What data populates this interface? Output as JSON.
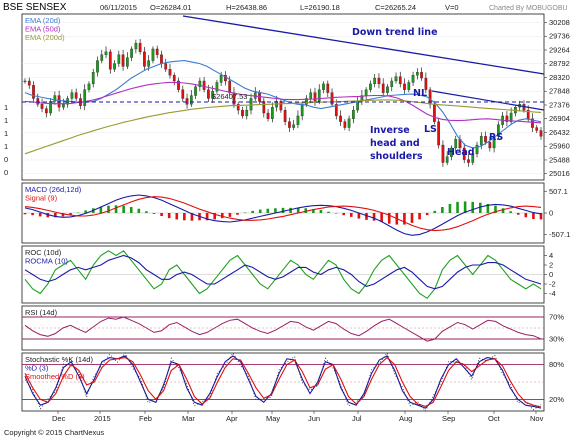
{
  "header": {
    "title": "BSE SENSEX",
    "date": "06/11/2015",
    "open": "O=26284.01",
    "high": "H=26438.86",
    "low": "L=26190.18",
    "close": "C=26265.24",
    "volume": "V=0",
    "credit": "Charted By MOBUGOBU"
  },
  "footer": {
    "copyright": "Copyright © 2015 ChartNexus"
  },
  "colors": {
    "frame": "#1a1a1a",
    "price_bg": "#ffffff",
    "ema20": "#3a7bd5",
    "ema50": "#b030c0",
    "ema200": "#9a9a30",
    "trend": "#1a1aa8",
    "macd": "#1a1aa8",
    "signal": "#e01010",
    "roc": "#20a020",
    "rocma": "#1a1aa8",
    "rsi": "#9a2060",
    "stoch_k": "#1a1aa8",
    "stoch_d": "#e01010",
    "bar_up": "#1a9a1a",
    "bar_down": "#e01010"
  },
  "chart_data": [
    {
      "type": "candlestick",
      "name": "price",
      "legend": [
        "EMA (20d)",
        "EMA (50d)",
        "EMA (200d)"
      ],
      "x_ticks": [
        "Dec",
        "2015",
        "Feb",
        "Mar",
        "Apr",
        "May",
        "Jun",
        "Jul",
        "Aug",
        "Sep",
        "Oct",
        "Nov"
      ],
      "y_ticks": [
        30208,
        29736,
        29264,
        28792,
        28320,
        27848,
        27376,
        26904,
        26432,
        25960,
        25488,
        25016
      ],
      "left_ticks": [
        "1",
        "1",
        "1",
        "1",
        "0",
        "0"
      ],
      "ylim": [
        24800,
        30500
      ],
      "close": [
        28200,
        28050,
        27600,
        27400,
        27250,
        27100,
        27500,
        27700,
        27300,
        27400,
        27600,
        27800,
        27600,
        27350,
        27900,
        28100,
        28500,
        28900,
        29100,
        29200,
        28600,
        28800,
        29100,
        28700,
        29000,
        29300,
        29500,
        29200,
        28700,
        28900,
        29300,
        29100,
        28800,
        28600,
        28400,
        28200,
        27900,
        27600,
        27400,
        27700,
        28000,
        28200,
        27900,
        27600,
        27850,
        28150,
        28400,
        28200,
        27800,
        27400,
        27200,
        27000,
        27200,
        27600,
        27800,
        27500,
        27100,
        26900,
        27300,
        27500,
        27200,
        26800,
        26600,
        26700,
        27000,
        27400,
        27600,
        27800,
        27500,
        27900,
        28100,
        27800,
        27400,
        27000,
        26800,
        26600,
        26900,
        27200,
        27500,
        27700,
        27900,
        28100,
        28300,
        28100,
        27800,
        28000,
        28200,
        28350,
        28100,
        27900,
        28150,
        28400,
        28500,
        28300,
        27900,
        27400,
        26800,
        26000,
        25400,
        25600,
        25900,
        26200,
        25900,
        25500,
        25400,
        25700,
        26000,
        26300,
        26100,
        25900,
        26300,
        26700,
        27000,
        26800,
        27100,
        27300,
        27400,
        27200,
        26900,
        26600,
        26500,
        26300
      ],
      "series": [
        {
          "name": "EMA (20d)",
          "values": [
            27800,
            27700,
            27650,
            27600,
            27550,
            27520,
            27500,
            27480,
            27470,
            27500,
            27600,
            27750,
            27900,
            28100,
            28300,
            28450,
            28600,
            28700,
            28800,
            28850,
            28880,
            28900,
            28850,
            28800,
            28700,
            28550,
            28400,
            28250,
            28100,
            27950,
            27850,
            27800,
            27750,
            27650,
            27550,
            27450,
            27400,
            27380,
            27300,
            27250,
            27300,
            27350,
            27400,
            27450,
            27500,
            27550,
            27600,
            27650,
            27700,
            27720,
            27740,
            27750,
            27720,
            27650,
            27450,
            27150,
            26750,
            26300,
            26000,
            25900,
            25950,
            26100,
            26300,
            26500,
            26700,
            26850,
            26900,
            26850,
            26800
          ]
        },
        {
          "name": "EMA (50d)",
          "values": [
            27500,
            27480,
            27450,
            27430,
            27420,
            27420,
            27430,
            27460,
            27500,
            27550,
            27620,
            27700,
            27780,
            27860,
            27940,
            28000,
            28060,
            28100,
            28130,
            28150,
            28150,
            28130,
            28100,
            28050,
            27990,
            27930,
            27870,
            27810,
            27760,
            27720,
            27690,
            27660,
            27630,
            27600,
            27570,
            27560,
            27560,
            27570,
            27580,
            27600,
            27620,
            27640,
            27650,
            27660,
            27670,
            27690,
            27700,
            27700,
            27680,
            27620,
            27520,
            27380,
            27220,
            27060,
            26950,
            26880,
            26850,
            26840,
            26850,
            26870,
            26890,
            26900,
            26880,
            26850,
            26830,
            26820,
            26800,
            26780,
            26760
          ]
        },
        {
          "name": "EMA (200d)",
          "values": [
            25700,
            25790,
            25880,
            25970,
            26060,
            26150,
            26240,
            26330,
            26410,
            26490,
            26570,
            26640,
            26710,
            26780,
            26840,
            26900,
            26960,
            27010,
            27060,
            27110,
            27150,
            27190,
            27230,
            27260,
            27290,
            27310,
            27330,
            27350,
            27360,
            27370,
            27380,
            27390,
            27400,
            27410,
            27420,
            27430,
            27440,
            27450,
            27460,
            27470,
            27480,
            27490,
            27500,
            27510,
            27520,
            27530,
            27540,
            27550,
            27550,
            27540,
            27520,
            27490,
            27460,
            27430,
            27400,
            27380,
            27360,
            27340,
            27320,
            27300,
            27280,
            27260,
            27240,
            27220,
            27200,
            27180,
            27160,
            27140,
            27120
          ]
        }
      ],
      "annotations": {
        "trend_label": "Down trend line",
        "support_label": "$26407.53",
        "neckline_label": "NL",
        "pattern_label": [
          "Inverse",
          "head and",
          "shoulders"
        ],
        "ls_label": "LS",
        "head_label": "Head",
        "rs_label": "RS"
      }
    },
    {
      "type": "bar",
      "name": "macd",
      "legend": [
        "MACD (26d,12d)",
        "Signal (9)"
      ],
      "y_ticks": [
        "507.1",
        "0",
        "-507.1"
      ],
      "ylim": [
        -700,
        700
      ],
      "series": [
        {
          "name": "MACD (26d,12d)",
          "values": [
            120,
            80,
            20,
            -40,
            -80,
            -100,
            -90,
            -60,
            -10,
            60,
            140,
            220,
            300,
            360,
            400,
            420,
            400,
            360,
            300,
            220,
            140,
            60,
            -20,
            -80,
            -140,
            -180,
            -200,
            -210,
            -190,
            -160,
            -120,
            -80,
            -40,
            0,
            40,
            80,
            120,
            150,
            170,
            180,
            170,
            150,
            110,
            60,
            0,
            -60,
            -120,
            -200,
            -300,
            -400,
            -480,
            -520,
            -500,
            -440,
            -360,
            -260,
            -160,
            -60,
            20,
            80,
            140,
            180,
            200,
            190,
            160,
            110,
            60,
            10,
            -20
          ]
        },
        {
          "name": "Signal (9)",
          "values": [
            150,
            130,
            100,
            60,
            20,
            -20,
            -50,
            -70,
            -70,
            -50,
            -10,
            50,
            120,
            190,
            260,
            320,
            360,
            380,
            370,
            340,
            290,
            230,
            160,
            90,
            30,
            -30,
            -80,
            -120,
            -150,
            -170,
            -170,
            -160,
            -140,
            -110,
            -80,
            -40,
            0,
            40,
            80,
            110,
            140,
            155,
            160,
            150,
            130,
            100,
            60,
            10,
            -50,
            -130,
            -210,
            -290,
            -350,
            -390,
            -410,
            -400,
            -370,
            -320,
            -250,
            -180,
            -100,
            -30,
            30,
            80,
            120,
            150,
            160,
            150,
            130
          ]
        }
      ]
    },
    {
      "type": "line",
      "name": "roc",
      "legend": [
        "ROC (10d)",
        "ROCMA (10)"
      ],
      "y_ticks": [
        "4",
        "2",
        "0",
        "-2",
        "-4"
      ],
      "ylim": [
        -6,
        6
      ],
      "series": [
        {
          "name": "ROC (10d)",
          "values": [
            -1,
            -3,
            -4,
            -2,
            1,
            2,
            3,
            1,
            -1,
            2,
            4,
            5,
            4,
            5,
            3,
            1,
            -1,
            -3,
            -2,
            1,
            2,
            0,
            -2,
            -4,
            -3,
            -1,
            1,
            3,
            4,
            2,
            0,
            -2,
            -3,
            -1,
            1,
            3,
            2,
            0,
            -1,
            1,
            3,
            2,
            -1,
            -3,
            -4,
            -2,
            1,
            3,
            4,
            2,
            0,
            -2,
            -4,
            -5,
            -3,
            1,
            3,
            4,
            2,
            0,
            2,
            4,
            3,
            1,
            -1,
            -2,
            -3,
            -2,
            -3
          ]
        },
        {
          "name": "ROCMA (10)",
          "values": [
            1,
            0,
            -1,
            -1.5,
            -1,
            0,
            1,
            1.5,
            1,
            1.5,
            2,
            3,
            3.5,
            4,
            3.5,
            2.5,
            1,
            0,
            -1,
            -1,
            0,
            0.5,
            0,
            -1,
            -2,
            -2,
            -1,
            0,
            1,
            2,
            1.5,
            0.5,
            -0.5,
            -1,
            -0.5,
            0.5,
            1.5,
            1.5,
            0.5,
            0,
            1,
            1.5,
            1,
            0,
            -1.5,
            -2.5,
            -2,
            -1,
            0,
            1,
            1.5,
            0.5,
            -1,
            -2.5,
            -3,
            -2.5,
            -1,
            0.5,
            1.5,
            2,
            2,
            2.5,
            2.5,
            2,
            1,
            0,
            -1,
            -1.5,
            -2
          ]
        }
      ]
    },
    {
      "type": "line",
      "name": "rsi",
      "legend": [
        "RSI (14d)"
      ],
      "y_ticks": [
        "70%",
        "30%"
      ],
      "ylim": [
        10,
        90
      ],
      "series": [
        {
          "name": "RSI (14d)",
          "values": [
            55,
            45,
            38,
            35,
            40,
            50,
            55,
            48,
            42,
            52,
            62,
            68,
            66,
            70,
            64,
            58,
            50,
            42,
            45,
            56,
            60,
            52,
            44,
            38,
            42,
            50,
            58,
            64,
            66,
            58,
            50,
            44,
            40,
            46,
            54,
            62,
            60,
            52,
            46,
            54,
            62,
            58,
            48,
            40,
            36,
            44,
            54,
            62,
            66,
            58,
            50,
            42,
            34,
            26,
            30,
            44,
            52,
            60,
            56,
            48,
            56,
            64,
            62,
            54,
            48,
            42,
            38,
            36,
            30
          ]
        }
      ]
    },
    {
      "type": "line",
      "name": "stochastic",
      "legend": [
        "Stochastic %K (14d)",
        "%D (3)",
        "Smoothed %D (3)"
      ],
      "y_ticks": [
        "80%",
        "20%"
      ],
      "ylim": [
        0,
        100
      ],
      "series": [
        {
          "name": "%D (3)",
          "values": [
            60,
            30,
            10,
            15,
            40,
            75,
            85,
            60,
            30,
            55,
            85,
            92,
            90,
            95,
            80,
            50,
            20,
            15,
            45,
            85,
            80,
            40,
            15,
            10,
            30,
            60,
            85,
            95,
            85,
            55,
            25,
            15,
            30,
            65,
            90,
            88,
            55,
            30,
            50,
            85,
            80,
            40,
            15,
            10,
            30,
            65,
            88,
            95,
            70,
            35,
            15,
            10,
            5,
            20,
            55,
            80,
            90,
            75,
            60,
            85,
            92,
            90,
            70,
            40,
            20,
            10,
            8,
            5
          ]
        },
        {
          "name": "Smoothed %D (3)",
          "values": [
            65,
            40,
            20,
            15,
            30,
            60,
            80,
            70,
            45,
            50,
            75,
            88,
            90,
            92,
            85,
            62,
            35,
            20,
            35,
            70,
            80,
            55,
            25,
            12,
            22,
            50,
            75,
            90,
            88,
            65,
            40,
            22,
            28,
            55,
            80,
            88,
            68,
            40,
            45,
            72,
            80,
            55,
            25,
            12,
            25,
            55,
            80,
            92,
            80,
            50,
            25,
            12,
            8,
            15,
            42,
            70,
            85,
            80,
            68,
            78,
            88,
            90,
            78,
            52,
            30,
            15,
            10,
            7
          ]
        }
      ]
    }
  ]
}
